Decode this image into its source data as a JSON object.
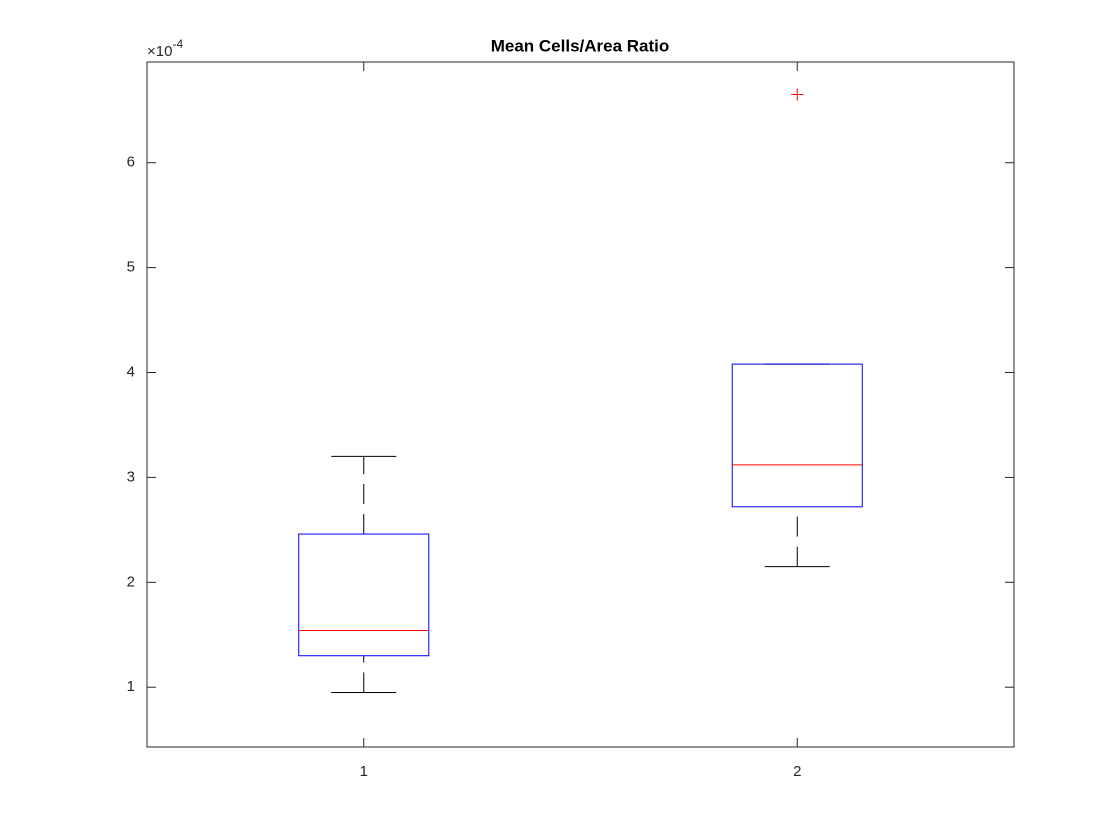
{
  "chart_data": {
    "type": "box",
    "title": "Mean Cells/Area Ratio",
    "y_exponent": {
      "base": "×10",
      "power": "-4"
    },
    "categories": [
      "1",
      "2"
    ],
    "boxes": [
      {
        "min": 0.95,
        "q1": 1.3,
        "median": 1.54,
        "q3": 2.46,
        "max": 3.2,
        "outliers": []
      },
      {
        "min": 2.15,
        "q1": 2.72,
        "median": 3.12,
        "q3": 4.08,
        "max": 4.08,
        "outliers": [
          6.65
        ]
      }
    ],
    "box_color": "#0000ff",
    "median_color": "#ff0000",
    "whisker_color": "#000000",
    "outlier_color": "#ff0000",
    "ylim": [
      0.43,
      6.96
    ],
    "yticks": [
      1,
      2,
      3,
      4,
      5,
      6
    ],
    "grid": false
  }
}
